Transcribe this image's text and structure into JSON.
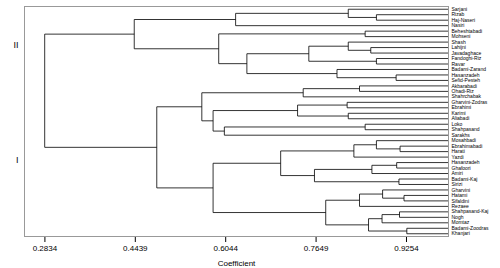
{
  "chart_data": {
    "type": "dendrogram",
    "xlabel": "Coefficient",
    "xlim": [
      0.24715,
      1.0
    ],
    "xticks": [
      0.2834,
      0.4439,
      0.6044,
      0.7649,
      0.9254
    ],
    "color": "#000000",
    "tree": {
      "value": 0.283,
      "children": [
        {
          "value": 0.482,
          "label": "I",
          "children": [
            {
              "value": 0.582,
              "children": [
                {
                  "value": 0.782,
                  "children": [
                    {
                      "value": 0.858,
                      "children": [
                        {
                          "value": 0.926,
                          "children": [
                            "Khanjari",
                            "Badami-Zoodras"
                          ]
                        },
                        {
                          "value": 0.882,
                          "children": [
                            "Momtaz",
                            {
                              "value": 0.913,
                              "children": [
                                "Nogh",
                                "Shahpasand-Kaj"
                              ]
                            }
                          ]
                        }
                      ]
                    },
                    {
                      "value": 0.842,
                      "children": [
                        "Rezaee",
                        {
                          "value": 0.883,
                          "children": [
                            {
                              "value": 0.921,
                              "children": [
                                "Sifaldini",
                                "Hatami"
                              ]
                            },
                            "Gharvini"
                          ]
                        }
                      ]
                    }
                  ]
                },
                {
                  "value": 0.702,
                  "children": [
                    {
                      "value": 0.762,
                      "children": [
                        {
                          "value": 0.912,
                          "children": [
                            "Sirizi",
                            "Badami-Kaj"
                          ]
                        },
                        {
                          "value": 0.864,
                          "children": [
                            "Amiri",
                            {
                              "value": 0.908,
                              "children": [
                                "Ghafoori",
                                "Hasanzadeh"
                              ]
                            }
                          ]
                        }
                      ]
                    },
                    {
                      "value": 0.832,
                      "children": [
                        "Yazdi",
                        {
                          "value": 0.872,
                          "children": [
                            {
                              "value": 0.914,
                              "children": [
                                "Harati",
                                "Ebrahimabadi"
                              ]
                            },
                            "Mosahbadi"
                          ]
                        }
                      ]
                    }
                  ]
                }
              ]
            },
            {
              "value": 0.562,
              "children": [
                {
                  "value": 0.582,
                  "children": [
                    {
                      "value": 0.602,
                      "children": [
                        "Sarakhs",
                        {
                          "value": 0.852,
                          "children": [
                            "Shahpasand",
                            "Loko"
                          ]
                        }
                      ]
                    },
                    {
                      "value": 0.732,
                      "children": [
                        {
                          "value": 0.822,
                          "children": [
                            "Aliabadi",
                            "Karimi"
                          ]
                        },
                        {
                          "value": 0.82,
                          "children": [
                            "Ebrahimi",
                            "Gharvini-Zodras"
                          ]
                        }
                      ]
                    }
                  ]
                },
                {
                  "value": 0.742,
                  "children": [
                    "Shahrchabak",
                    {
                      "value": 0.842,
                      "children": [
                        "Ohadi-Riz",
                        "Akbarabadi"
                      ]
                    }
                  ]
                }
              ]
            }
          ]
        },
        {
          "value": 0.442,
          "label": "II",
          "children": [
            {
              "value": 0.592,
              "children": [
                {
                  "value": 0.642,
                  "children": [
                    {
                      "value": 0.802,
                      "children": [
                        {
                          "value": 0.907,
                          "children": [
                            "Sefid-Pesteh",
                            "Hasanzadeh"
                          ]
                        },
                        "Badami-Zarand"
                      ]
                    },
                    {
                      "value": 0.752,
                      "children": [
                        {
                          "value": 0.872,
                          "children": [
                            "Ravar",
                            "Fandoghi-Riz"
                          ]
                        },
                        {
                          "value": 0.822,
                          "children": [
                            {
                              "value": 0.862,
                              "children": [
                                "Javadaghace",
                                "Lahijni"
                              ]
                            },
                            "Shash"
                          ]
                        }
                      ]
                    }
                  ]
                },
                {
                  "value": 0.852,
                  "children": [
                    "Mohseni",
                    "Beheshtabadi"
                  ]
                }
              ]
            },
            {
              "value": 0.622,
              "children": [
                "Nasiri",
                {
                  "value": 0.822,
                  "children": [
                    {
                      "value": 0.872,
                      "children": [
                        "Haj-Naseri",
                        "Rizab"
                      ]
                    },
                    "Sarjani"
                  ]
                }
              ]
            }
          ]
        }
      ]
    }
  }
}
